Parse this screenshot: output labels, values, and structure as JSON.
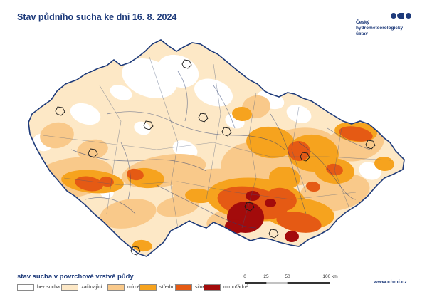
{
  "header": {
    "title": "Stav půdního sucha ke dni 16. 8. 2024"
  },
  "logo": {
    "lines": [
      "Český",
      "hydrometeorologický",
      "ústav"
    ],
    "color": "#1d3a7a"
  },
  "map": {
    "region": "Česká republika",
    "classes": [
      {
        "key": "none",
        "label": "bez sucha",
        "color": "#ffffff"
      },
      {
        "key": "beginning",
        "label": "začínající",
        "color": "#fde8c6"
      },
      {
        "key": "mild",
        "label": "mírné",
        "color": "#f9c98a"
      },
      {
        "key": "moderate",
        "label": "střední",
        "color": "#f6a31e"
      },
      {
        "key": "severe",
        "label": "silné",
        "color": "#e55a14"
      },
      {
        "key": "extreme",
        "label": "mimořádné",
        "color": "#a30b0b"
      }
    ],
    "border_color": "#1d3a7a",
    "river_color": "#2b3f73"
  },
  "legend": {
    "title": "stav sucha v povrchové vrstvě půdy"
  },
  "scale": {
    "labels": [
      "0",
      "25",
      "50",
      "100 km"
    ]
  },
  "footer": {
    "site": "www.chmi.cz"
  }
}
